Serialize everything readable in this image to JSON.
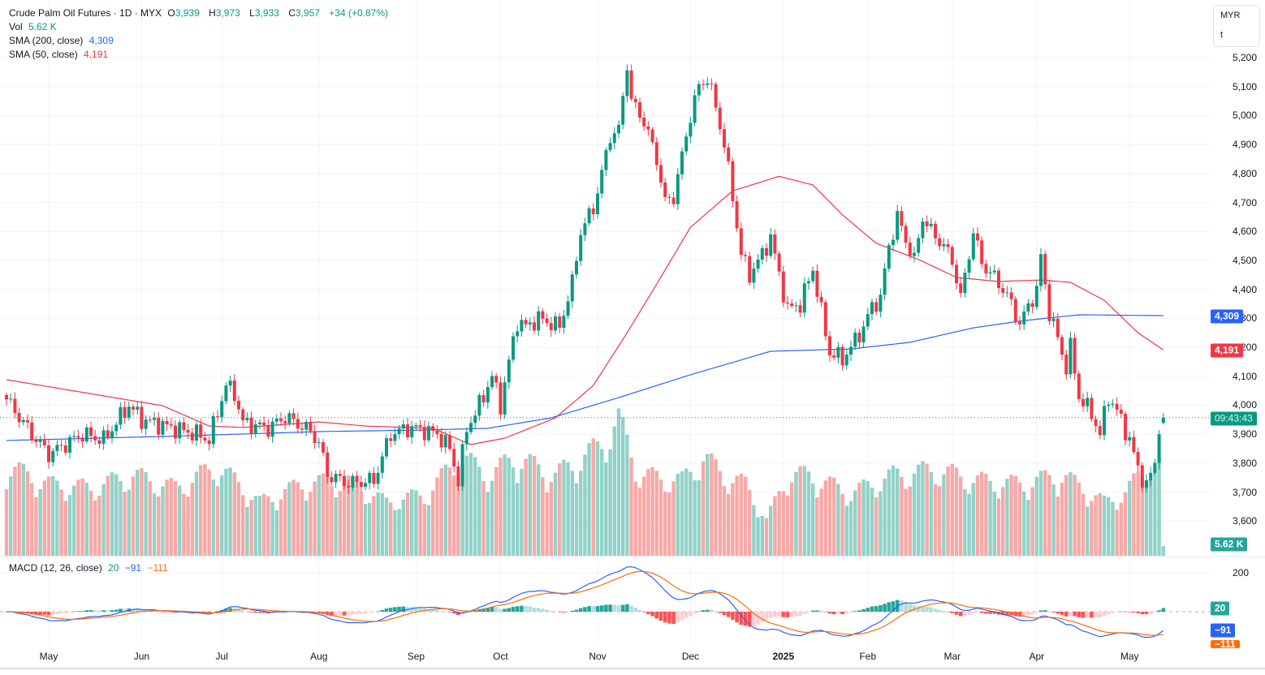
{
  "legend": {
    "symbol": "Crude Palm Oil Futures · 1D · MYX",
    "o_label": "O",
    "o": "3,939",
    "h_label": "H",
    "h": "3,973",
    "l_label": "L",
    "l": "3,933",
    "c_label": "C",
    "c": "3,957",
    "change": "+34 (+0.87%)",
    "vol_label": "Vol",
    "vol": "5.62 K",
    "sma200_label": "SMA (200, close)",
    "sma200": "4,309",
    "sma50_label": "SMA (50, close)",
    "sma50": "4,191",
    "macd_label": "MACD (12, 26, close)",
    "macd_hist": "20",
    "macd_line": "−91",
    "macd_signal": "−111"
  },
  "units": {
    "currency": "MYR",
    "unit": "t"
  },
  "tags": {
    "sma200": "4,309",
    "sma50": "4,191",
    "countdown": "09:43:43",
    "volume": "5.62 K",
    "macd_hist": "20",
    "macd_line": "−91",
    "macd_signal": "−111"
  },
  "colors": {
    "up": "#089981",
    "down": "#f23645",
    "sma50": "#f23645",
    "sma200": "#2962ff",
    "macd": "#2962ff",
    "signal": "#ff6d00"
  },
  "chart_data": {
    "type": "candlestick",
    "title": "Crude Palm Oil Futures · 1D · MYX",
    "price_ticks": [
      "5,200",
      "5,100",
      "5,000",
      "4,900",
      "4,800",
      "4,700",
      "4,600",
      "4,500",
      "4,400",
      "4,300",
      "4,200",
      "4,100",
      "4,000",
      "3,900",
      "3,800",
      "3,700",
      "3,600"
    ],
    "price_tick_values": [
      5200,
      5100,
      5000,
      4900,
      4800,
      4700,
      4600,
      4500,
      4400,
      4300,
      4200,
      4100,
      4000,
      3900,
      3800,
      3700,
      3600
    ],
    "ylim": [
      3500,
      5250
    ],
    "macd_ticks": [
      "200"
    ],
    "macd_tick_values": [
      200
    ],
    "time_labels": [
      {
        "day": 10,
        "label": "May"
      },
      {
        "day": 32,
        "label": "Jun"
      },
      {
        "day": 51,
        "label": "Jul"
      },
      {
        "day": 74,
        "label": "Aug"
      },
      {
        "day": 97,
        "label": "Sep"
      },
      {
        "day": 117,
        "label": "Oct"
      },
      {
        "day": 140,
        "label": "Nov"
      },
      {
        "day": 162,
        "label": "Dec"
      },
      {
        "day": 184,
        "label": "2025"
      },
      {
        "day": 204,
        "label": "Feb"
      },
      {
        "day": 224,
        "label": "Mar"
      },
      {
        "day": 244,
        "label": "Apr"
      },
      {
        "day": 266,
        "label": "May"
      }
    ],
    "last_bar": {
      "open": 3939,
      "high": 3973,
      "low": 3933,
      "close": 3957,
      "volume_k": 5.62
    },
    "close_anchors": [
      [
        0,
        4020
      ],
      [
        6,
        3900
      ],
      [
        10,
        3830
      ],
      [
        18,
        3900
      ],
      [
        23,
        3880
      ],
      [
        29,
        4000
      ],
      [
        32,
        3950
      ],
      [
        37,
        3930
      ],
      [
        45,
        3900
      ],
      [
        48,
        3880
      ],
      [
        52,
        4070
      ],
      [
        54,
        4040
      ],
      [
        56,
        3940
      ],
      [
        62,
        3920
      ],
      [
        66,
        3960
      ],
      [
        72,
        3910
      ],
      [
        74,
        3870
      ],
      [
        76,
        3760
      ],
      [
        81,
        3730
      ],
      [
        87,
        3740
      ],
      [
        91,
        3900
      ],
      [
        95,
        3920
      ],
      [
        97,
        3920
      ],
      [
        102,
        3900
      ],
      [
        105,
        3850
      ],
      [
        107,
        3740
      ],
      [
        109,
        3920
      ],
      [
        112,
        4000
      ],
      [
        115,
        4100
      ],
      [
        117,
        4000
      ],
      [
        119,
        4150
      ],
      [
        121,
        4290
      ],
      [
        123,
        4270
      ],
      [
        126,
        4300
      ],
      [
        131,
        4270
      ],
      [
        134,
        4420
      ],
      [
        136,
        4600
      ],
      [
        139,
        4680
      ],
      [
        141,
        4800
      ],
      [
        143,
        4930
      ],
      [
        145,
        4950
      ],
      [
        147,
        5180
      ],
      [
        148,
        5050
      ],
      [
        151,
        4980
      ],
      [
        154,
        4850
      ],
      [
        156,
        4700
      ],
      [
        158,
        4720
      ],
      [
        160,
        4860
      ],
      [
        162,
        5000
      ],
      [
        164,
        5100
      ],
      [
        166,
        5130
      ],
      [
        168,
        5030
      ],
      [
        170,
        4900
      ],
      [
        172,
        4720
      ],
      [
        174,
        4520
      ],
      [
        176,
        4450
      ],
      [
        179,
        4520
      ],
      [
        181,
        4580
      ],
      [
        183,
        4450
      ],
      [
        185,
        4330
      ],
      [
        188,
        4350
      ],
      [
        191,
        4470
      ],
      [
        193,
        4320
      ],
      [
        195,
        4180
      ],
      [
        198,
        4160
      ],
      [
        200,
        4200
      ],
      [
        203,
        4270
      ],
      [
        205,
        4340
      ],
      [
        207,
        4370
      ],
      [
        209,
        4550
      ],
      [
        211,
        4650
      ],
      [
        213,
        4570
      ],
      [
        215,
        4500
      ],
      [
        217,
        4650
      ],
      [
        219,
        4600
      ],
      [
        222,
        4550
      ],
      [
        224,
        4500
      ],
      [
        226,
        4370
      ],
      [
        229,
        4600
      ],
      [
        231,
        4490
      ],
      [
        234,
        4440
      ],
      [
        237,
        4380
      ],
      [
        240,
        4280
      ],
      [
        242,
        4340
      ],
      [
        244,
        4400
      ],
      [
        245,
        4510
      ],
      [
        247,
        4320
      ],
      [
        249,
        4230
      ],
      [
        251,
        4130
      ],
      [
        252,
        4200
      ],
      [
        254,
        4030
      ],
      [
        257,
        3970
      ],
      [
        259,
        3900
      ],
      [
        261,
        4030
      ],
      [
        263,
        3980
      ],
      [
        266,
        3880
      ],
      [
        268,
        3780
      ],
      [
        270,
        3720
      ],
      [
        272,
        3800
      ],
      [
        273,
        3930
      ],
      [
        274,
        3957
      ]
    ],
    "volume_anchors_k": [
      [
        0,
        50
      ],
      [
        10,
        40
      ],
      [
        20,
        38
      ],
      [
        30,
        45
      ],
      [
        40,
        38
      ],
      [
        50,
        50
      ],
      [
        60,
        30
      ],
      [
        70,
        40
      ],
      [
        80,
        42
      ],
      [
        90,
        30
      ],
      [
        100,
        35
      ],
      [
        107,
        55
      ],
      [
        115,
        45
      ],
      [
        120,
        55
      ],
      [
        130,
        45
      ],
      [
        140,
        60
      ],
      [
        145,
        75
      ],
      [
        150,
        45
      ],
      [
        160,
        42
      ],
      [
        165,
        55
      ],
      [
        170,
        45
      ],
      [
        175,
        40
      ],
      [
        180,
        20
      ],
      [
        185,
        45
      ],
      [
        190,
        45
      ],
      [
        200,
        35
      ],
      [
        210,
        45
      ],
      [
        220,
        48
      ],
      [
        230,
        42
      ],
      [
        240,
        40
      ],
      [
        250,
        45
      ],
      [
        260,
        30
      ],
      [
        265,
        35
      ],
      [
        270,
        50
      ],
      [
        273,
        50
      ]
    ],
    "sma50_anchors": [
      [
        0,
        4088
      ],
      [
        37,
        3998
      ],
      [
        48,
        3928
      ],
      [
        56,
        3923
      ],
      [
        74,
        3942
      ],
      [
        85,
        3928
      ],
      [
        101,
        3920
      ],
      [
        110,
        3864
      ],
      [
        118,
        3886
      ],
      [
        130,
        3956
      ],
      [
        139,
        4068
      ],
      [
        147,
        4250
      ],
      [
        154,
        4418
      ],
      [
        162,
        4614
      ],
      [
        172,
        4740
      ],
      [
        183,
        4790
      ],
      [
        191,
        4760
      ],
      [
        198,
        4657
      ],
      [
        206,
        4559
      ],
      [
        216,
        4503
      ],
      [
        225,
        4441
      ],
      [
        235,
        4427
      ],
      [
        245,
        4432
      ],
      [
        252,
        4424
      ],
      [
        260,
        4362
      ],
      [
        268,
        4250
      ],
      [
        274,
        4191
      ]
    ],
    "sma200_anchors": [
      [
        0,
        3878
      ],
      [
        37,
        3892
      ],
      [
        75,
        3909
      ],
      [
        98,
        3914
      ],
      [
        114,
        3920
      ],
      [
        129,
        3956
      ],
      [
        145,
        4026
      ],
      [
        162,
        4105
      ],
      [
        181,
        4186
      ],
      [
        200,
        4194
      ],
      [
        214,
        4217
      ],
      [
        229,
        4267
      ],
      [
        241,
        4292
      ],
      [
        254,
        4312
      ],
      [
        274,
        4309
      ]
    ]
  }
}
